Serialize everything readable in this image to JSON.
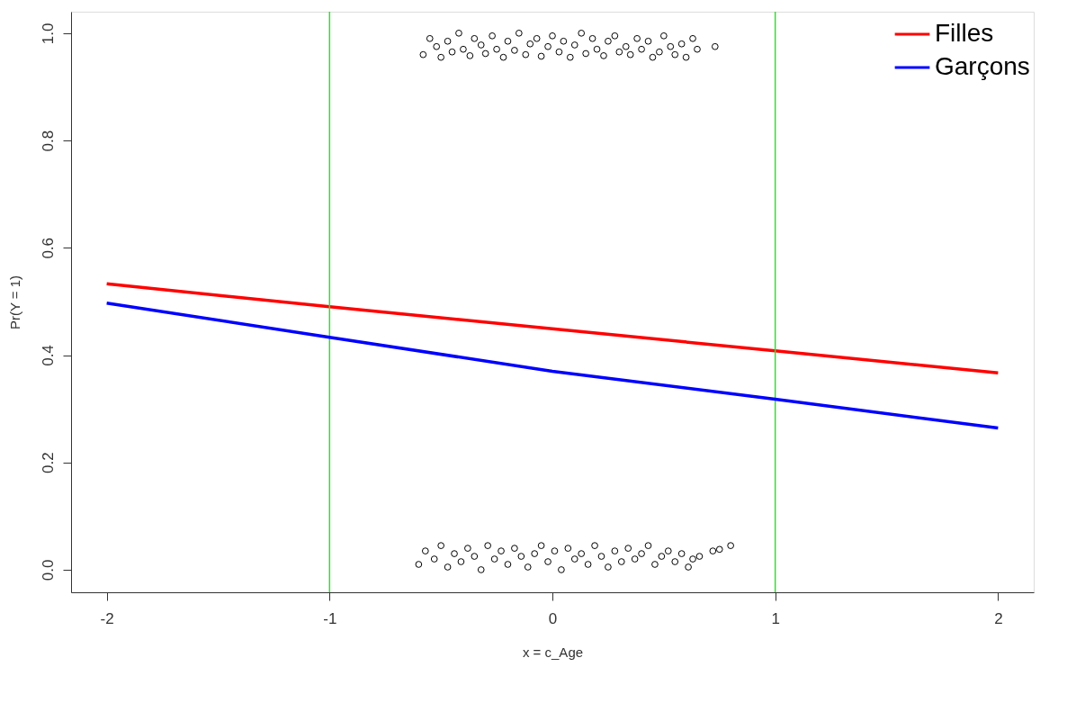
{
  "chart_data": {
    "type": "line",
    "xlabel": "x = c_Age",
    "ylabel": "Pr(Y = 1)",
    "xlim": [
      -2.16,
      2.16
    ],
    "ylim": [
      -0.042,
      1.04
    ],
    "xticks": [
      -2,
      -1,
      0,
      1,
      2
    ],
    "yticks": [
      {
        "value": 0,
        "label": "0.0"
      },
      0.2,
      0.4,
      0.6,
      0.8,
      {
        "value": 1,
        "label": "1.0"
      }
    ],
    "grid": false,
    "legend": "top right",
    "line_style": "solid",
    "marker": "none",
    "ref_lines": [
      {
        "axis": "x",
        "value": -1,
        "color": "#33dd33"
      },
      {
        "axis": "x",
        "value": 1,
        "color": "#33dd33"
      }
    ],
    "series": [
      {
        "name": "Filles",
        "color": "#ff0000",
        "x": [
          -2,
          -1,
          0,
          1,
          2
        ],
        "values": [
          0.533,
          0.49,
          0.449,
          0.408,
          0.367
        ]
      },
      {
        "name": "Garçons",
        "color": "#0000ff",
        "x": [
          -2,
          -1,
          0,
          1,
          2
        ],
        "values": [
          0.497,
          0.433,
          0.37,
          0.318,
          0.264
        ]
      },
      {
        "color": "#000000",
        "type": "scatter",
        "marker": "circle",
        "x": [
          -0.58,
          -0.55,
          -0.52,
          -0.5,
          -0.47,
          -0.45,
          -0.42,
          -0.4,
          -0.37,
          -0.35,
          -0.32,
          -0.3,
          -0.27,
          -0.25,
          -0.22,
          -0.2,
          -0.17,
          -0.15,
          -0.12,
          -0.1,
          -0.07,
          -0.05,
          -0.02,
          0,
          0.03,
          0.05,
          0.08,
          0.1,
          0.13,
          0.15,
          0.18,
          0.2,
          0.23,
          0.25,
          0.28,
          0.3,
          0.33,
          0.35,
          0.38,
          0.4,
          0.43,
          0.45,
          0.48,
          0.5,
          0.53,
          0.55,
          0.58,
          0.6,
          0.63,
          0.65,
          0.73
        ],
        "values": [
          0.96,
          0.99,
          0.975,
          0.955,
          0.985,
          0.965,
          1.0,
          0.97,
          0.958,
          0.99,
          0.978,
          0.962,
          0.995,
          0.97,
          0.955,
          0.985,
          0.968,
          1.0,
          0.96,
          0.98,
          0.99,
          0.957,
          0.975,
          0.995,
          0.965,
          0.985,
          0.955,
          0.978,
          1.0,
          0.962,
          0.99,
          0.97,
          0.958,
          0.985,
          0.995,
          0.965,
          0.975,
          0.96,
          0.99,
          0.97,
          0.985,
          0.955,
          0.965,
          0.995,
          0.975,
          0.96,
          0.98,
          0.955,
          0.99,
          0.97,
          0.975
        ]
      },
      {
        "color": "#000000",
        "type": "scatter",
        "marker": "circle",
        "x": [
          -0.6,
          -0.57,
          -0.53,
          -0.5,
          -0.47,
          -0.44,
          -0.41,
          -0.38,
          -0.35,
          -0.32,
          -0.29,
          -0.26,
          -0.23,
          -0.2,
          -0.17,
          -0.14,
          -0.11,
          -0.08,
          -0.05,
          -0.02,
          0.01,
          0.04,
          0.07,
          0.1,
          0.13,
          0.16,
          0.19,
          0.22,
          0.25,
          0.28,
          0.31,
          0.34,
          0.37,
          0.4,
          0.43,
          0.46,
          0.49,
          0.52,
          0.55,
          0.58,
          0.61,
          0.63,
          0.66,
          0.72,
          0.75,
          0.8
        ],
        "values": [
          0.01,
          0.035,
          0.02,
          0.045,
          0.005,
          0.03,
          0.015,
          0.04,
          0.025,
          0.0,
          0.045,
          0.02,
          0.035,
          0.01,
          0.04,
          0.025,
          0.005,
          0.03,
          0.045,
          0.015,
          0.035,
          0.0,
          0.04,
          0.02,
          0.03,
          0.01,
          0.045,
          0.025,
          0.005,
          0.035,
          0.015,
          0.04,
          0.02,
          0.03,
          0.045,
          0.01,
          0.025,
          0.035,
          0.015,
          0.03,
          0.005,
          0.02,
          0.025,
          0.035,
          0.038,
          0.045
        ]
      }
    ]
  }
}
